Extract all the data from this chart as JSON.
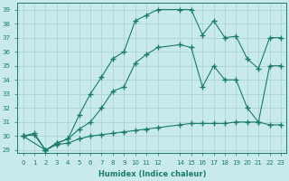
{
  "xlabel": "Humidex (Indice chaleur)",
  "background_color": "#c8eaea",
  "grid_color": "#aed4d4",
  "line_color": "#1a7a6e",
  "xlim": [
    -0.5,
    23.5
  ],
  "ylim": [
    28.8,
    39.5
  ],
  "yticks": [
    29,
    30,
    31,
    32,
    33,
    34,
    35,
    36,
    37,
    38,
    39
  ],
  "xticks": [
    0,
    1,
    2,
    3,
    4,
    5,
    6,
    7,
    8,
    9,
    10,
    11,
    12,
    14,
    15,
    16,
    17,
    18,
    19,
    20,
    21,
    22,
    23
  ],
  "line1_x": [
    0,
    1,
    2,
    3,
    4,
    5,
    6,
    7,
    8,
    9,
    10,
    11,
    12,
    14,
    15,
    16,
    17,
    18,
    19,
    20,
    21,
    22,
    23
  ],
  "line1_y": [
    30.0,
    30.2,
    29.0,
    29.5,
    29.8,
    31.5,
    33.0,
    34.2,
    35.5,
    36.0,
    38.2,
    38.6,
    39.0,
    39.0,
    39.0,
    37.2,
    38.2,
    37.0,
    37.1,
    35.5,
    34.8,
    37.0,
    37.0
  ],
  "line2_x": [
    0,
    2,
    3,
    4,
    5,
    6,
    7,
    8,
    9,
    10,
    11,
    12,
    14,
    15,
    16,
    17,
    18,
    19,
    20,
    21,
    22,
    23
  ],
  "line2_y": [
    30.0,
    29.0,
    29.5,
    29.8,
    30.5,
    31.0,
    32.0,
    33.2,
    33.5,
    35.2,
    35.8,
    36.3,
    36.5,
    36.3,
    33.5,
    35.0,
    34.0,
    34.0,
    32.0,
    31.0,
    35.0,
    35.0
  ],
  "line3_x": [
    0,
    1,
    2,
    3,
    4,
    5,
    6,
    7,
    8,
    9,
    10,
    11,
    12,
    14,
    15,
    16,
    17,
    18,
    19,
    20,
    21,
    22,
    23
  ],
  "line3_y": [
    30.0,
    30.1,
    29.0,
    29.4,
    29.5,
    29.8,
    30.0,
    30.1,
    30.2,
    30.3,
    30.4,
    30.5,
    30.6,
    30.8,
    30.9,
    30.9,
    30.9,
    30.9,
    31.0,
    31.0,
    31.0,
    30.8,
    30.8
  ]
}
